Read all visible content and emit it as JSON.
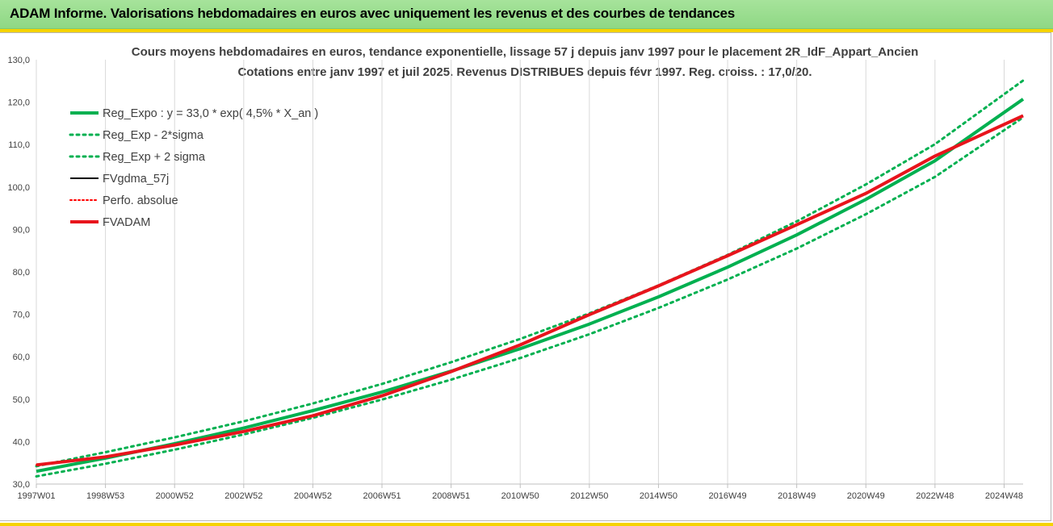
{
  "header": {
    "title": "ADAM Informe. Valorisations hebdomadaires en euros avec uniquement les revenus et des courbes de tendances"
  },
  "chart_data": {
    "type": "line",
    "title": "Cours moyens hebdomadaires en euros, tendance exponentielle, lissage 57 j depuis janv 1997 pour le placement 2R_IdF_Appart_Ancien",
    "subtitle": "Cotations entre janv 1997 et juil 2025. Revenus DISTRIBUES depuis févr 1997. Reg. croiss. : 17,0/20.",
    "xlabel": "",
    "ylabel": "",
    "ylim": [
      30,
      130
    ],
    "xlim": [
      1997.0,
      2025.55
    ],
    "yticks": [
      "30,0",
      "40,0",
      "50,0",
      "60,0",
      "70,0",
      "80,0",
      "90,0",
      "100,0",
      "110,0",
      "120,0",
      "130,0"
    ],
    "xticks": [
      {
        "label": "1997W01",
        "t": 1997.0
      },
      {
        "label": "1998W53",
        "t": 1999.0
      },
      {
        "label": "2000W52",
        "t": 2001.0
      },
      {
        "label": "2002W52",
        "t": 2003.0
      },
      {
        "label": "2004W52",
        "t": 2005.0
      },
      {
        "label": "2006W51",
        "t": 2007.0
      },
      {
        "label": "2008W51",
        "t": 2009.0
      },
      {
        "label": "2010W50",
        "t": 2011.0
      },
      {
        "label": "2012W50",
        "t": 2013.0
      },
      {
        "label": "2014W50",
        "t": 2015.0
      },
      {
        "label": "2016W49",
        "t": 2017.0
      },
      {
        "label": "2018W49",
        "t": 2019.0
      },
      {
        "label": "2020W49",
        "t": 2021.0
      },
      {
        "label": "2022W48",
        "t": 2023.0
      },
      {
        "label": "2024W48",
        "t": 2025.0
      }
    ],
    "grid": "vertical",
    "legend_position": "top-left",
    "series": [
      {
        "name": "Reg_Expo : y = 33,0 * exp( 4,5% *  X_an )",
        "color": "#00b050",
        "style": "solid",
        "width": 4,
        "x": [
          1997.0,
          1999.0,
          2001.0,
          2003.0,
          2005.0,
          2007.0,
          2009.0,
          2011.0,
          2013.0,
          2015.0,
          2017.0,
          2019.0,
          2021.0,
          2023.0,
          2025.55
        ],
        "values": [
          33.0,
          36.1,
          39.5,
          43.2,
          47.3,
          51.7,
          56.6,
          61.9,
          67.7,
          74.1,
          81.1,
          88.7,
          97.1,
          106.2,
          120.7
        ]
      },
      {
        "name": "Reg_Exp - 2*sigma",
        "color": "#00b050",
        "style": "dotted",
        "width": 3,
        "x": [
          1997.0,
          1999.0,
          2001.0,
          2003.0,
          2005.0,
          2007.0,
          2009.0,
          2011.0,
          2013.0,
          2015.0,
          2017.0,
          2019.0,
          2021.0,
          2023.0,
          2025.55
        ],
        "values": [
          31.8,
          34.8,
          38.1,
          41.7,
          45.6,
          49.9,
          54.6,
          59.7,
          65.3,
          71.5,
          78.2,
          85.5,
          93.6,
          102.4,
          116.4
        ]
      },
      {
        "name": "Reg_Exp + 2 sigma",
        "color": "#00b050",
        "style": "dotted",
        "width": 3,
        "x": [
          1997.0,
          1999.0,
          2001.0,
          2003.0,
          2005.0,
          2007.0,
          2009.0,
          2011.0,
          2013.0,
          2015.0,
          2017.0,
          2019.0,
          2021.0,
          2023.0,
          2025.55
        ],
        "values": [
          34.2,
          37.5,
          41.0,
          44.8,
          49.0,
          53.6,
          58.7,
          64.2,
          70.2,
          76.8,
          84.0,
          91.9,
          100.6,
          110.1,
          125.1
        ]
      },
      {
        "name": "FVgdma_57j",
        "color": "#000000",
        "style": "solid",
        "width": 2,
        "x": [
          1997.0,
          1999.0,
          2001.0,
          2003.0,
          2005.0,
          2007.0,
          2009.0,
          2011.0,
          2013.0,
          2015.0,
          2017.0,
          2019.0,
          2021.0,
          2023.0,
          2025.55
        ],
        "values": [
          34.5,
          36.4,
          39.2,
          42.4,
          46.1,
          50.8,
          56.5,
          62.8,
          69.9,
          76.7,
          83.8,
          91.1,
          98.5,
          107.3,
          116.8
        ]
      },
      {
        "name": "Perfo. absolue",
        "color": "#ff0000",
        "style": "dotted",
        "width": 2,
        "x": [
          1997.0,
          1999.0,
          2001.0,
          2003.0,
          2005.0,
          2007.0,
          2009.0,
          2011.0,
          2013.0,
          2015.0,
          2017.0,
          2019.0,
          2021.0,
          2023.0,
          2025.55
        ],
        "values": [
          34.5,
          36.4,
          39.2,
          42.4,
          46.1,
          50.8,
          56.5,
          62.8,
          69.9,
          76.7,
          83.8,
          91.1,
          98.5,
          107.3,
          116.8
        ]
      },
      {
        "name": "FVADAM",
        "color": "#e8141c",
        "style": "solid",
        "width": 4,
        "x": [
          1997.0,
          1999.0,
          2001.0,
          2003.0,
          2005.0,
          2007.0,
          2009.0,
          2011.0,
          2013.0,
          2015.0,
          2017.0,
          2019.0,
          2021.0,
          2023.0,
          2025.55
        ],
        "values": [
          34.5,
          36.4,
          39.2,
          42.4,
          46.1,
          50.8,
          56.5,
          62.8,
          69.9,
          76.7,
          83.8,
          91.1,
          98.5,
          107.3,
          116.8
        ]
      }
    ]
  }
}
